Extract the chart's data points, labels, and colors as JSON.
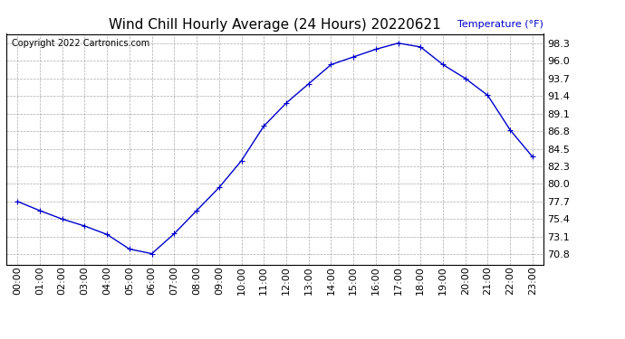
{
  "title": "Wind Chill Hourly Average (24 Hours) 20220621",
  "copyright": "Copyright 2022 Cartronics.com",
  "ylabel": "Temperature (°F)",
  "hours": [
    "00:00",
    "01:00",
    "02:00",
    "03:00",
    "04:00",
    "05:00",
    "06:00",
    "07:00",
    "08:00",
    "09:00",
    "10:00",
    "11:00",
    "12:00",
    "13:00",
    "14:00",
    "15:00",
    "16:00",
    "17:00",
    "18:00",
    "19:00",
    "20:00",
    "21:00",
    "22:00",
    "23:00"
  ],
  "values": [
    77.7,
    76.5,
    75.4,
    74.5,
    73.4,
    71.5,
    70.9,
    73.5,
    76.5,
    79.5,
    83.0,
    87.5,
    90.5,
    93.0,
    95.5,
    96.5,
    97.5,
    98.3,
    97.8,
    95.5,
    93.7,
    91.5,
    87.0,
    83.5
  ],
  "line_color": "#0000cc",
  "marker": "+",
  "marker_size": 5,
  "background_color": "#ffffff",
  "grid_color": "#aaaaaa",
  "title_fontsize": 11,
  "tick_fontsize": 8,
  "ylabel_color": "#0000cc",
  "copyright_color": "#000000",
  "copyright_fontsize": 7,
  "yticks": [
    70.8,
    73.1,
    75.4,
    77.7,
    80.0,
    82.3,
    84.5,
    86.8,
    89.1,
    91.4,
    93.7,
    96.0,
    98.3
  ],
  "ylim": [
    69.5,
    99.5
  ]
}
